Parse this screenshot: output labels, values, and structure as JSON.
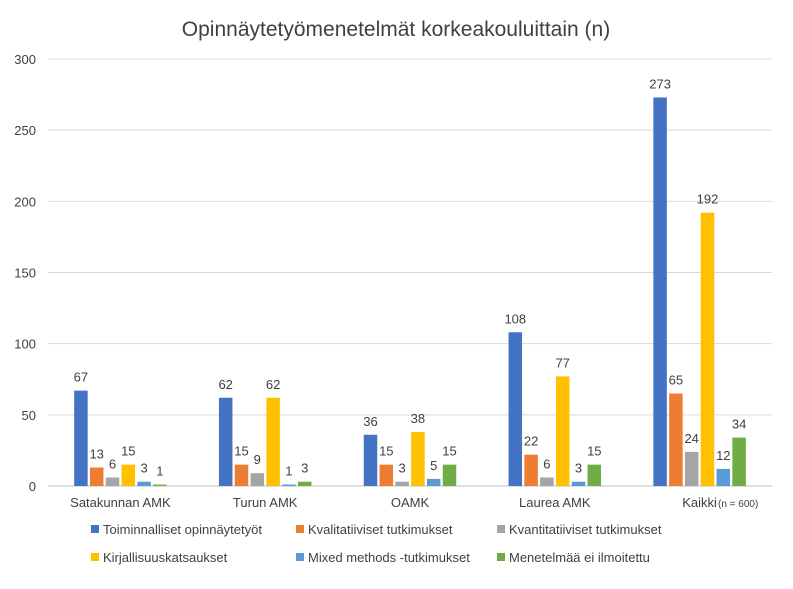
{
  "chart_data": {
    "type": "bar",
    "title": "Opinnäytetyömenetelmät korkeakouluittain (n)",
    "note": "(n = 600)",
    "categories": [
      "Satakunnan AMK",
      "Turun AMK",
      "OAMK",
      "Laurea AMK",
      "Kaikki"
    ],
    "ylim": [
      0,
      300
    ],
    "yticks": [
      0,
      50,
      100,
      150,
      200,
      250,
      300
    ],
    "grid": true,
    "legend_position": "bottom",
    "series": [
      {
        "name": "Toiminnalliset opinnäytetyöt",
        "color": "#4472C4",
        "values": [
          67,
          62,
          36,
          108,
          273
        ]
      },
      {
        "name": "Kvalitatiiviset tutkimukset",
        "color": "#ED7D31",
        "values": [
          13,
          15,
          15,
          22,
          65
        ]
      },
      {
        "name": "Kvantitatiiviset tutkimukset",
        "color": "#A5A5A5",
        "values": [
          6,
          9,
          3,
          6,
          24
        ]
      },
      {
        "name": "Kirjallisuuskatsaukset",
        "color": "#FFC000",
        "values": [
          15,
          62,
          38,
          77,
          192
        ]
      },
      {
        "name": "Mixed methods -tutkimukset",
        "color": "#5B9BD5",
        "values": [
          3,
          1,
          5,
          3,
          12
        ]
      },
      {
        "name": "Menetelmää ei ilmoitettu",
        "color": "#70AD47",
        "values": [
          1,
          3,
          15,
          15,
          34
        ]
      }
    ]
  }
}
